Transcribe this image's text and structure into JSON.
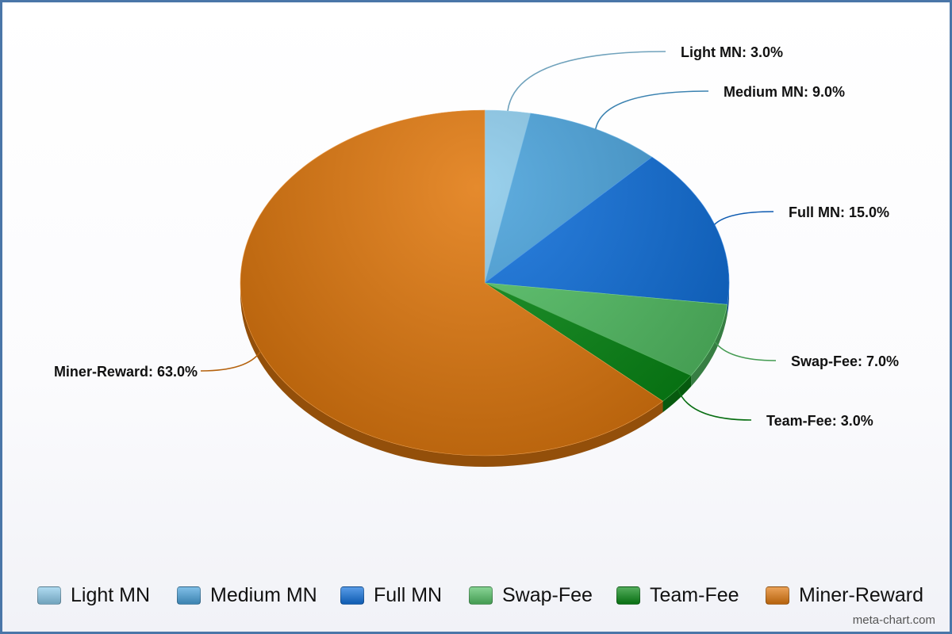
{
  "chart_data": {
    "type": "pie",
    "title": "",
    "slices": [
      {
        "label": "Light MN",
        "value": 3.0,
        "display": "Light MN: 3.0%",
        "color": "#8ccbeb"
      },
      {
        "label": "Medium MN",
        "value": 9.0,
        "display": "Medium MN: 9.0%",
        "color": "#4aa3dc"
      },
      {
        "label": "Full MN",
        "value": 15.0,
        "display": "Full MN: 15.0%",
        "color": "#1272dd"
      },
      {
        "label": "Swap-Fee",
        "value": 7.0,
        "display": "Swap-Fee: 7.0%",
        "color": "#55c267"
      },
      {
        "label": "Team-Fee",
        "value": 3.0,
        "display": "Team-Fee: 3.0%",
        "color": "#0a8a17"
      },
      {
        "label": "Miner-Reward",
        "value": 63.0,
        "display": "Miner-Reward: 63.0%",
        "color": "#e27a10"
      }
    ],
    "legend_position": "bottom"
  },
  "watermark": "meta-chart.com"
}
